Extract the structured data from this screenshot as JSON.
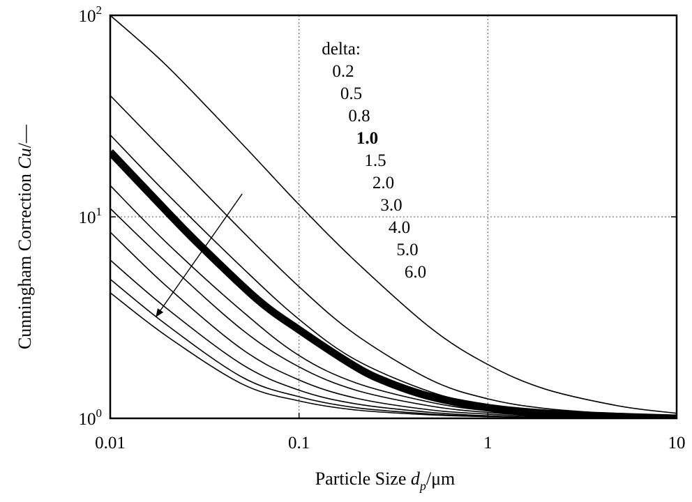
{
  "chart_data": {
    "type": "line",
    "x_scale": "log",
    "y_scale": "log",
    "xlim": [
      0.01,
      10
    ],
    "ylim": [
      1,
      100
    ],
    "x_ticks": [
      {
        "value": 0.01,
        "label": "0.01"
      },
      {
        "value": 0.1,
        "label": "0.1"
      },
      {
        "value": 1,
        "label": "1"
      },
      {
        "value": 10,
        "label": "10"
      }
    ],
    "y_ticks": [
      {
        "value": 1,
        "base": "10",
        "exp": "0"
      },
      {
        "value": 10,
        "base": "10",
        "exp": "1"
      },
      {
        "value": 100,
        "base": "10",
        "exp": "2"
      }
    ],
    "grid": "dotted at decades",
    "xlabel": {
      "text": "Particle Size ",
      "var": "d",
      "sub": "p",
      "unit": "/μm"
    },
    "ylabel": {
      "text": "Cunningham Correction ",
      "var": "Cu",
      "unit": "/—"
    },
    "legend": {
      "title": "delta:",
      "entries": [
        "0.2",
        "0.5",
        "0.8",
        "1.0",
        "1.5",
        "2.0",
        "3.0",
        "4.0",
        "5.0",
        "6.0"
      ],
      "highlight": "1.0",
      "placement": "top-center"
    },
    "arrow": {
      "from": [
        0.05,
        13
      ],
      "to": [
        0.0175,
        3.2
      ],
      "meaning": "increasing delta"
    },
    "series": [
      {
        "delta": 0.2,
        "bold": false,
        "points": [
          [
            0.01,
            100
          ],
          [
            0.02,
            56
          ],
          [
            0.05,
            23
          ],
          [
            0.1,
            11.5
          ],
          [
            0.2,
            6
          ],
          [
            0.5,
            2.8
          ],
          [
            1,
            1.85
          ],
          [
            2,
            1.4
          ],
          [
            5,
            1.15
          ],
          [
            10,
            1.06
          ]
        ]
      },
      {
        "delta": 0.5,
        "bold": false,
        "points": [
          [
            0.01,
            40
          ],
          [
            0.02,
            20.5
          ],
          [
            0.05,
            8.5
          ],
          [
            0.1,
            4.5
          ],
          [
            0.2,
            2.6
          ],
          [
            0.5,
            1.55
          ],
          [
            1,
            1.25
          ],
          [
            2,
            1.12
          ],
          [
            5,
            1.05
          ],
          [
            10,
            1.02
          ]
        ]
      },
      {
        "delta": 0.8,
        "bold": false,
        "points": [
          [
            0.01,
            25.5
          ],
          [
            0.02,
            13
          ],
          [
            0.05,
            5.6
          ],
          [
            0.1,
            3.1
          ],
          [
            0.2,
            1.95
          ],
          [
            0.5,
            1.35
          ],
          [
            1,
            1.16
          ],
          [
            2,
            1.08
          ],
          [
            5,
            1.03
          ],
          [
            10,
            1.01
          ]
        ]
      },
      {
        "delta": 1.0,
        "bold": true,
        "points": [
          [
            0.01,
            21
          ],
          [
            0.02,
            10.6
          ],
          [
            0.03,
            7.2
          ],
          [
            0.06,
            3.9
          ],
          [
            0.1,
            2.75
          ],
          [
            0.2,
            1.8
          ],
          [
            0.3,
            1.5
          ],
          [
            0.5,
            1.28
          ],
          [
            1,
            1.13
          ],
          [
            2,
            1.06
          ],
          [
            5,
            1.02
          ],
          [
            10,
            1.0
          ]
        ]
      },
      {
        "delta": 1.5,
        "bold": false,
        "points": [
          [
            0.01,
            14.3
          ],
          [
            0.02,
            7.4
          ],
          [
            0.05,
            3.4
          ],
          [
            0.1,
            2.05
          ],
          [
            0.2,
            1.5
          ],
          [
            0.5,
            1.2
          ],
          [
            1,
            1.09
          ],
          [
            2,
            1.04
          ],
          [
            5,
            1.01
          ],
          [
            10,
            1.0
          ]
        ]
      },
      {
        "delta": 2.0,
        "bold": false,
        "points": [
          [
            0.01,
            11
          ],
          [
            0.02,
            5.9
          ],
          [
            0.05,
            2.75
          ],
          [
            0.1,
            1.8
          ],
          [
            0.2,
            1.38
          ],
          [
            0.5,
            1.15
          ],
          [
            1,
            1.07
          ],
          [
            2,
            1.03
          ],
          [
            5,
            1.01
          ],
          [
            10,
            1.0
          ]
        ]
      },
      {
        "delta": 3.0,
        "bold": false,
        "points": [
          [
            0.01,
            8.4
          ],
          [
            0.02,
            4.5
          ],
          [
            0.05,
            2.2
          ],
          [
            0.1,
            1.55
          ],
          [
            0.2,
            1.26
          ],
          [
            0.5,
            1.1
          ],
          [
            1,
            1.05
          ],
          [
            2,
            1.02
          ],
          [
            5,
            1.01
          ],
          [
            10,
            1.0
          ]
        ]
      },
      {
        "delta": 4.0,
        "bold": false,
        "points": [
          [
            0.01,
            6.1
          ],
          [
            0.02,
            3.5
          ],
          [
            0.05,
            1.85
          ],
          [
            0.1,
            1.38
          ],
          [
            0.2,
            1.18
          ],
          [
            0.5,
            1.07
          ],
          [
            1,
            1.03
          ],
          [
            2,
            1.01
          ],
          [
            5,
            1.0
          ],
          [
            10,
            1.0
          ]
        ]
      },
      {
        "delta": 5.0,
        "bold": false,
        "points": [
          [
            0.01,
            4.9
          ],
          [
            0.02,
            2.9
          ],
          [
            0.05,
            1.6
          ],
          [
            0.1,
            1.28
          ],
          [
            0.2,
            1.13
          ],
          [
            0.5,
            1.05
          ],
          [
            1,
            1.02
          ],
          [
            2,
            1.01
          ],
          [
            5,
            1.0
          ],
          [
            10,
            1.0
          ]
        ]
      },
      {
        "delta": 6.0,
        "bold": false,
        "points": [
          [
            0.01,
            4.2
          ],
          [
            0.02,
            2.55
          ],
          [
            0.05,
            1.48
          ],
          [
            0.1,
            1.22
          ],
          [
            0.2,
            1.1
          ],
          [
            0.5,
            1.04
          ],
          [
            1,
            1.02
          ],
          [
            2,
            1.01
          ],
          [
            5,
            1.0
          ],
          [
            10,
            1.0
          ]
        ]
      }
    ]
  }
}
